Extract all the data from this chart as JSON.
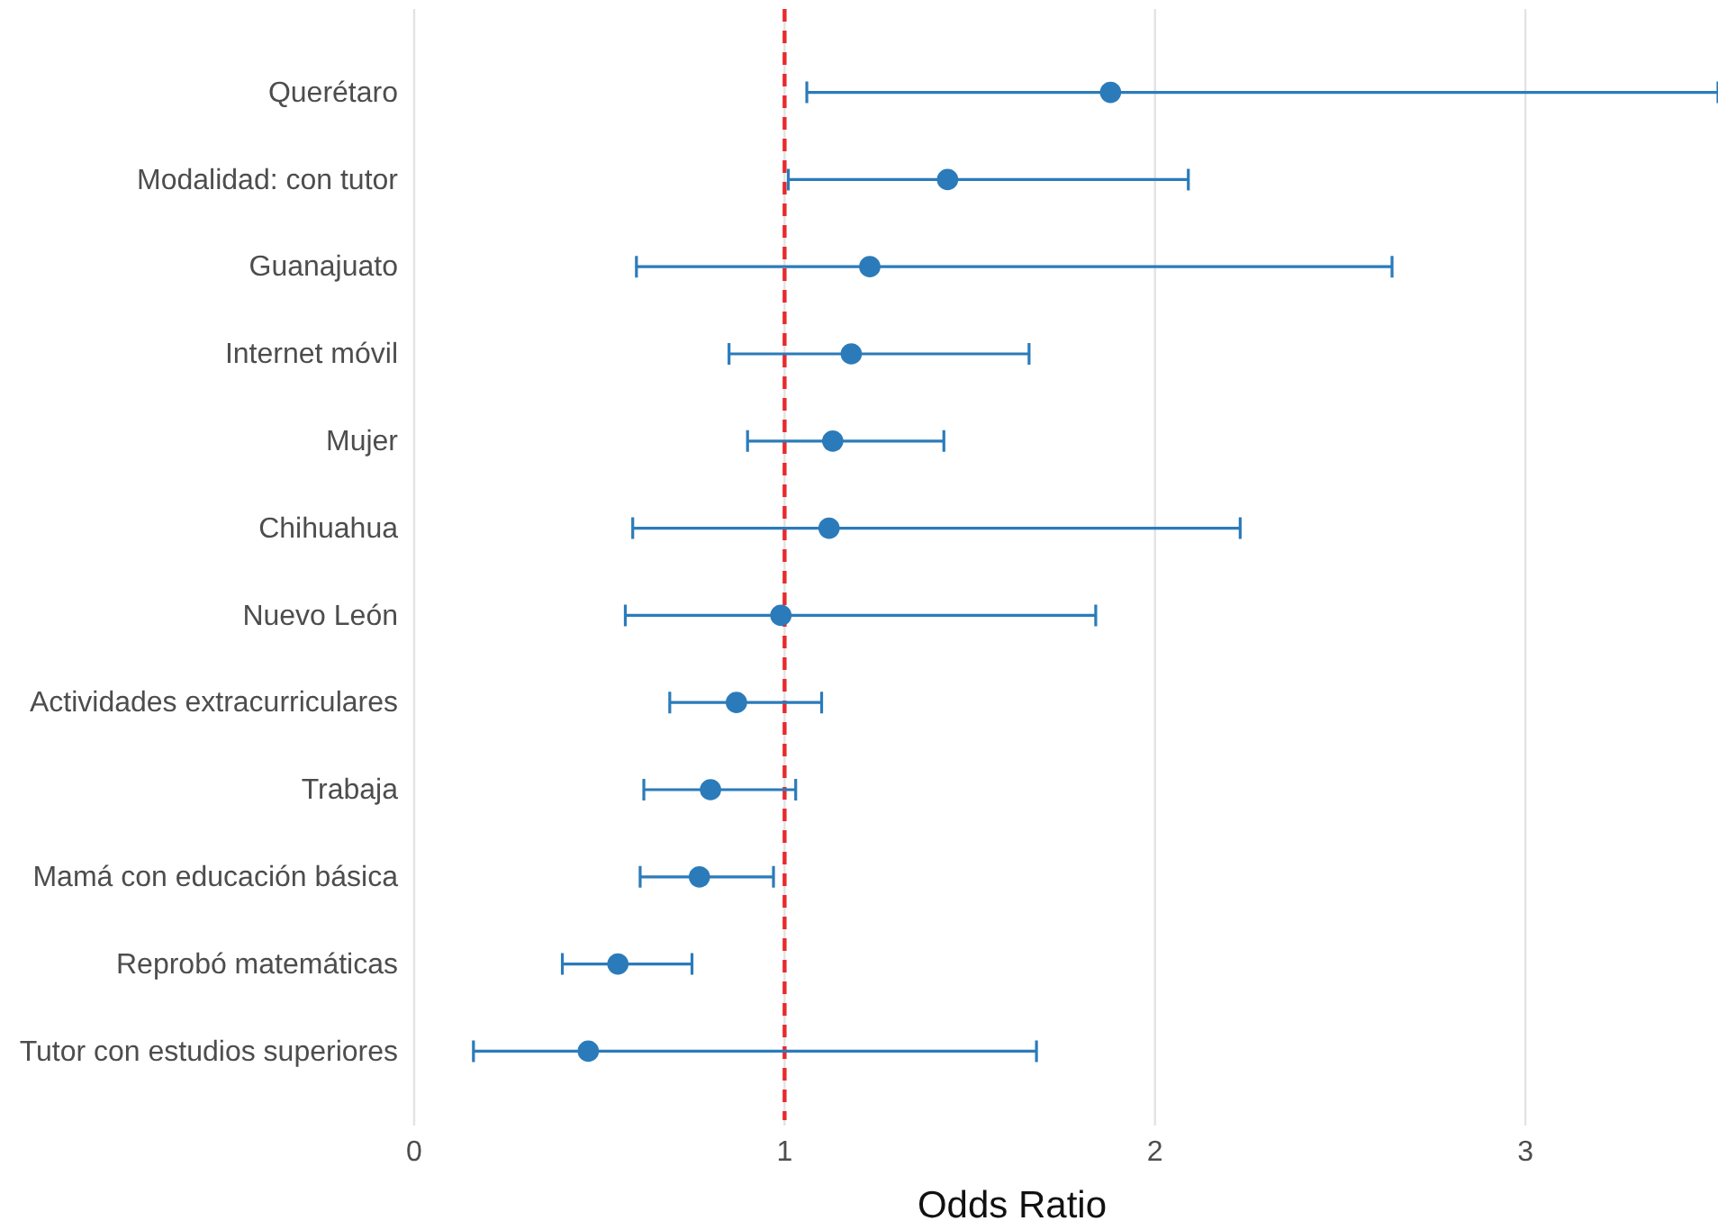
{
  "chart_data": {
    "type": "scatter",
    "orientation": "horizontal",
    "xlabel": "Odds Ratio",
    "categories": [
      "Querétaro",
      "Modalidad: con tutor",
      "Guanajuato",
      "Internet móvil",
      "Mujer",
      "Chihuahua",
      "Nuevo León",
      "Actividades extracurriculares",
      "Trabaja",
      "Mamá con educación básica",
      "Reprobó matemáticas",
      "Tutor con estudios superiores"
    ],
    "values": [
      1.88,
      1.44,
      1.23,
      1.18,
      1.13,
      1.12,
      0.99,
      0.87,
      0.8,
      0.77,
      0.55,
      0.47
    ],
    "errors": [
      [
        1.06,
        3.52
      ],
      [
        1.01,
        2.09
      ],
      [
        0.6,
        2.64
      ],
      [
        0.85,
        1.66
      ],
      [
        0.9,
        1.43
      ],
      [
        0.59,
        2.23
      ],
      [
        0.57,
        1.84
      ],
      [
        0.69,
        1.1
      ],
      [
        0.62,
        1.03
      ],
      [
        0.61,
        0.97
      ],
      [
        0.4,
        0.75
      ],
      [
        0.16,
        1.68
      ]
    ],
    "color": "#2b7bba",
    "marker": "circle",
    "xlim": [
      0,
      3.52
    ],
    "xticks": [
      0,
      1,
      2,
      3
    ],
    "grid": "x",
    "ref_lines": [
      {
        "axis": "x",
        "value": 1,
        "color": "#e8292b",
        "line_style": "dashed"
      }
    ]
  }
}
